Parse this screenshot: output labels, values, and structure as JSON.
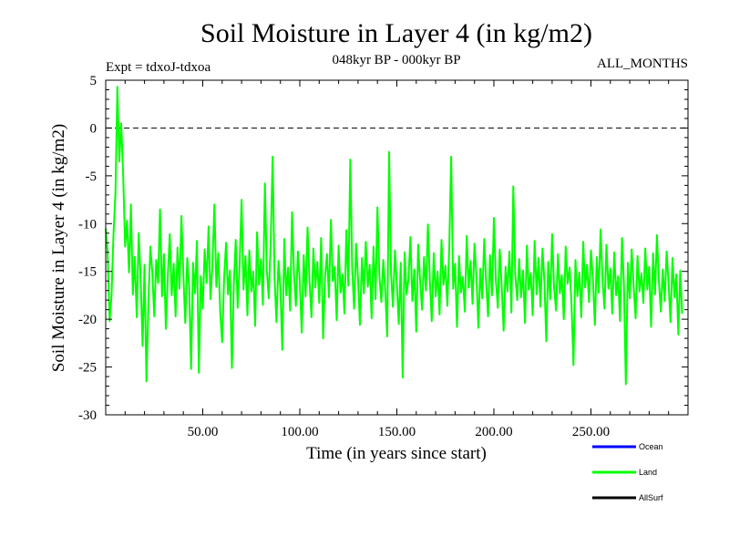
{
  "chart_data": {
    "type": "line",
    "title": "Soil Moisture in Layer 4 (in kg/m2)",
    "subtitle_left": "Expt = tdxoJ-tdxoa",
    "subtitle_center": "048kyr BP - 000kyr BP",
    "subtitle_right": "ALL_MONTHS",
    "xlabel": "Time (in years since start)",
    "ylabel": "Soil Moisture in Layer 4 (in kg/m2)",
    "xlim": [
      0,
      300
    ],
    "ylim": [
      -30,
      5
    ],
    "x_ticks": [
      50,
      100,
      150,
      200,
      250
    ],
    "x_tick_labels": [
      "50.00",
      "100.00",
      "150.00",
      "200.00",
      "250.00"
    ],
    "y_ticks": [
      5,
      0,
      -5,
      -10,
      -15,
      -20,
      -25,
      -30
    ],
    "y_tick_labels": [
      "5",
      "0",
      "-5",
      "-10",
      "-15",
      "-20",
      "-25",
      "-30"
    ],
    "reference_line": {
      "y": 0,
      "style": "dashed"
    },
    "grid": false,
    "legend_position": "bottom-right",
    "legend": [
      {
        "name": "Ocean",
        "color": "#0000ff"
      },
      {
        "name": "Land",
        "color": "#00ff00"
      },
      {
        "name": "AllSurf",
        "color": "#000000"
      }
    ],
    "series": [
      {
        "name": "Land",
        "color": "#00ff00",
        "x_start": 0,
        "x_step": 1,
        "values": [
          -10.5,
          -13,
          -20.2,
          -17.5,
          -11.2,
          -6.8,
          4.3,
          -3.5,
          0.5,
          -5,
          -12.4,
          -9.7,
          -15.1,
          -8,
          -17.4,
          -13.5,
          -19.8,
          -11,
          -15.6,
          -22.8,
          -14.3,
          -26.5,
          -18.2,
          -12.4,
          -15,
          -19.7,
          -13.8,
          -16.2,
          -8.5,
          -17.6,
          -13.2,
          -21,
          -15.4,
          -11.1,
          -17.5,
          -14.2,
          -19.7,
          -12.5,
          -16.8,
          -9.2,
          -15.3,
          -20.4,
          -13.6,
          -16.7,
          -25.2,
          -14.1,
          -17.3,
          -11.8,
          -25.6,
          -15.5,
          -18.9,
          -12.7,
          -16.2,
          -10.3,
          -17.9,
          -14.4,
          -8,
          -16.6,
          -13.1,
          -19.3,
          -22.4,
          -15.8,
          -12,
          -17.4,
          -14.9,
          -25.1,
          -16.3,
          -11.7,
          -18.8,
          -14.2,
          -7.5,
          -16.9,
          -13.4,
          -19.6,
          -12.8,
          -17.1,
          -15,
          -20.7,
          -10.9,
          -16.4,
          -13.7,
          -18.5,
          -5.8,
          -14.8,
          -17.8,
          -12.2,
          -3,
          -15.7,
          -20.3,
          -13.9,
          -16.8,
          -23.2,
          -11.6,
          -17.5,
          -14.6,
          -19.1,
          -8.8,
          -15.2,
          -18.6,
          -12.9,
          -16.1,
          -21.4,
          -13.3,
          -17.6,
          -10.4,
          -15.9,
          -19.8,
          -12.6,
          -16.7,
          -14,
          -18.3,
          -11.5,
          -22,
          -15.6,
          -13.2,
          -17.7,
          -9.6,
          -16,
          -14.5,
          -20.1,
          -12.3,
          -17.2,
          -15.3,
          -19.4,
          -10.7,
          -16.5,
          -3.3,
          -14.7,
          -18.9,
          -12.1,
          -15.8,
          -20.6,
          -13.6,
          -17.3,
          -11.9,
          -16.6,
          -14.3,
          -19.9,
          -12.4,
          -17.9,
          -8.3,
          -15.4,
          -18.2,
          -13.8,
          -16.9,
          -21.8,
          -2.5,
          -15.1,
          -18.7,
          -12.8,
          -16.3,
          -20.5,
          -14.1,
          -26.1,
          -13,
          -17.4,
          -15.7,
          -11.4,
          -18.1,
          -14.8,
          -21.3,
          -12.2,
          -16.1,
          -19,
          -13.5,
          -17,
          -10.1,
          -15.9,
          -20.2,
          -13.1,
          -17.6,
          -15,
          -19.5,
          -11.7,
          -16.4,
          -14.4,
          -18.6,
          -12.5,
          -3,
          -16.8,
          -14.2,
          -20.8,
          -13.4,
          -17.2,
          -15.6,
          -19.2,
          -11.3,
          -16.7,
          -13.9,
          -18.4,
          -12.1,
          -15.5,
          -20.9,
          -14.7,
          -17.8,
          -11.6,
          -16.2,
          -19.7,
          -13.3,
          -17.5,
          -9.4,
          -15.8,
          -18.8,
          -12.7,
          -16.5,
          -21.2,
          -14.5,
          -17.1,
          -12.9,
          -19.3,
          -6.1,
          -15.3,
          -18,
          -13.7,
          -17.7,
          -14.9,
          -20.4,
          -12.3,
          -16.9,
          -15.2,
          -19.6,
          -11.8,
          -17.4,
          -13.6,
          -18.7,
          -12.6,
          -16,
          -22.3,
          -14,
          -17.9,
          -11.1,
          -16.6,
          -19.1,
          -13.2,
          -17.3,
          -15.4,
          -20,
          -12.4,
          -16.3,
          -14.6,
          -18.5,
          -24.8,
          -13.8,
          -17.6,
          -15.1,
          -19.8,
          -11.9,
          -16.7,
          -14.3,
          -18.2,
          -12.8,
          -15.7,
          -20.6,
          -13.5,
          -17.2,
          -10.6,
          -16.1,
          -18.9,
          -12.2,
          -16.8,
          -14.7,
          -19.4,
          -13,
          -17.5,
          -15.5,
          -20.2,
          -11.5,
          -16.4,
          -26.8,
          -14.1,
          -17.8,
          -12.7,
          -16.6,
          -19.9,
          -13.4,
          -17.1,
          -15.2,
          -18.3,
          -12.6,
          -16.9,
          -14.5,
          -20.8,
          -13.1,
          -17.4,
          -11.2,
          -15.9,
          -19.2,
          -14.8,
          -18.1,
          -12.9,
          -16.2,
          -20.3,
          -13.6,
          -17.7,
          -15.3,
          -21.6,
          -14.9,
          -19.4
        ]
      }
    ]
  }
}
